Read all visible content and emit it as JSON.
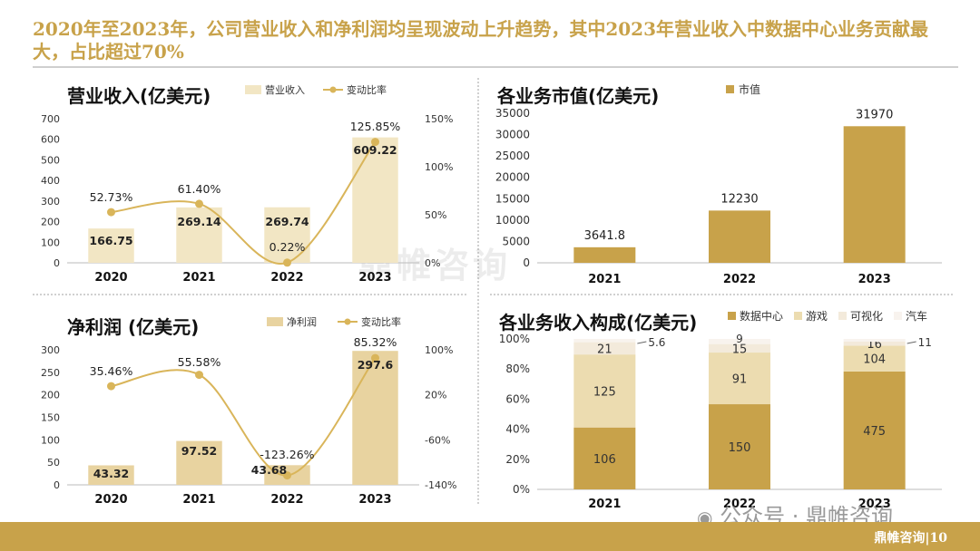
{
  "headline": "2020年至2023年，公司营业收入和净利润均呈现波动上升趋势，其中2023年营业收入中数据中心业务贡献最大，占比超过70%",
  "footer": {
    "brand": "鼎帷咨询|10"
  },
  "watermark": "鼎帷咨询",
  "wechat": "公众号 · 鼎帷咨询",
  "colors": {
    "gold": "#c8a24a",
    "bar_light": "#f2e6c4",
    "bar_mid": "#e8d3a0",
    "line": "#d9b55a"
  },
  "chart_data": [
    {
      "id": "revenue",
      "type": "bar",
      "title": "营业收入(亿美元)",
      "legend": [
        "营业收入",
        "变动比率"
      ],
      "categories": [
        "2020",
        "2021",
        "2022",
        "2023"
      ],
      "series": [
        {
          "name": "营业收入",
          "values": [
            166.75,
            269.14,
            269.74,
            609.22
          ],
          "labels": [
            "166.75",
            "269.14",
            "269.74",
            "609.22"
          ]
        },
        {
          "name": "变动比率",
          "type": "line",
          "values": [
            52.73,
            61.4,
            0.22,
            125.85
          ],
          "labels": [
            "52.73%",
            "61.40%",
            "0.22%",
            "125.85%"
          ]
        }
      ],
      "ylim": [
        0,
        700
      ],
      "yticks": [
        "0",
        "100",
        "200",
        "300",
        "400",
        "500",
        "600",
        "700"
      ],
      "y2lim": [
        0,
        150
      ],
      "y2ticks": [
        "0%",
        "50%",
        "100%",
        "150%"
      ]
    },
    {
      "id": "market_value",
      "type": "bar",
      "title": "各业务市值(亿美元)",
      "legend": [
        "市值"
      ],
      "categories": [
        "2021",
        "2022",
        "2023"
      ],
      "series": [
        {
          "name": "市值",
          "values": [
            3641.8,
            12230,
            31970
          ],
          "labels": [
            "3641.8",
            "12230",
            "31970"
          ]
        }
      ],
      "ylim": [
        0,
        35000
      ],
      "yticks": [
        "0",
        "5000",
        "10000",
        "15000",
        "20000",
        "25000",
        "30000",
        "35000"
      ]
    },
    {
      "id": "net_profit",
      "type": "bar",
      "title": "净利润 (亿美元)",
      "legend": [
        "净利润",
        "变动比率"
      ],
      "categories": [
        "2020",
        "2021",
        "2022",
        "2023"
      ],
      "series": [
        {
          "name": "净利润",
          "values": [
            43.32,
            97.52,
            43.68,
            297.6
          ],
          "labels": [
            "43.32",
            "97.52",
            "43.68",
            "297.6"
          ]
        },
        {
          "name": "变动比率",
          "type": "line",
          "values": [
            35.46,
            55.58,
            -123.26,
            85.32
          ],
          "labels": [
            "35.46%",
            "55.58%",
            "-123.26%",
            "85.32%"
          ]
        }
      ],
      "ylim": [
        0,
        300
      ],
      "yticks": [
        "0",
        "50",
        "100",
        "150",
        "200",
        "250",
        "300"
      ],
      "y2lim": [
        -140,
        100
      ],
      "y2ticks": [
        "-140%",
        "-60%",
        "20%",
        "100%"
      ]
    },
    {
      "id": "composition",
      "type": "bar",
      "stacked": "percent",
      "title": "各业务收入构成(亿美元)",
      "legend": [
        "数据中心",
        "游戏",
        "可视化",
        "汽车"
      ],
      "categories": [
        "2021",
        "2022",
        "2023"
      ],
      "series": [
        {
          "name": "数据中心",
          "values": [
            106,
            150,
            475
          ],
          "labels": [
            "106",
            "150",
            "475"
          ]
        },
        {
          "name": "游戏",
          "values": [
            125,
            91,
            104
          ],
          "labels": [
            "125",
            "91",
            "104"
          ]
        },
        {
          "name": "可视化",
          "values": [
            21,
            15,
            16
          ],
          "labels": [
            "21",
            "15",
            "16"
          ]
        },
        {
          "name": "汽车",
          "values": [
            5.6,
            9,
            11
          ],
          "labels": [
            "5.6",
            "9",
            "11"
          ]
        }
      ],
      "ylim": [
        0,
        100
      ],
      "yticks": [
        "0%",
        "20%",
        "40%",
        "60%",
        "80%",
        "100%"
      ]
    }
  ]
}
